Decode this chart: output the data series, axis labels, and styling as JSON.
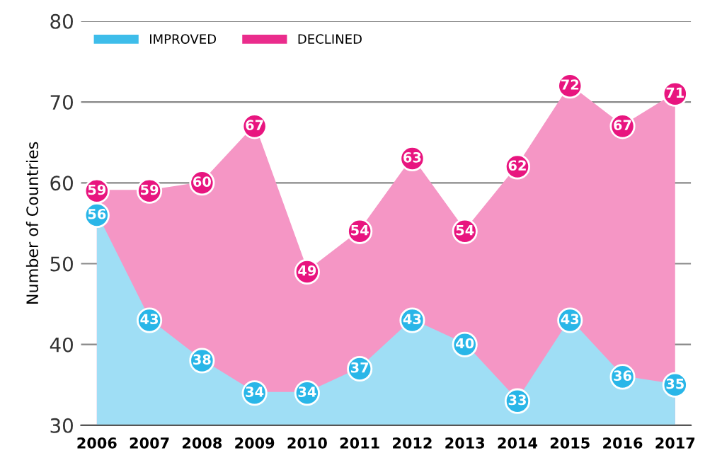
{
  "chart_data": {
    "type": "area",
    "ylabel": "Number of Countries",
    "categories": [
      "2006",
      "2007",
      "2008",
      "2009",
      "2010",
      "2011",
      "2012",
      "2013",
      "2014",
      "2015",
      "2016",
      "2017"
    ],
    "series": [
      {
        "name": "DECLINED",
        "color": "#e8157f",
        "values": [
          59,
          59,
          60,
          67,
          49,
          54,
          63,
          54,
          62,
          72,
          67,
          71
        ]
      },
      {
        "name": "IMPROVED",
        "color": "#29b6e8",
        "values": [
          56,
          43,
          38,
          34,
          34,
          37,
          43,
          40,
          33,
          43,
          36,
          35
        ]
      }
    ],
    "ylim": [
      30,
      80
    ],
    "yticks": [
      30,
      40,
      50,
      60,
      70,
      80
    ],
    "grid": "y",
    "legend": "top left",
    "marker": "circle",
    "data_labels": true
  }
}
